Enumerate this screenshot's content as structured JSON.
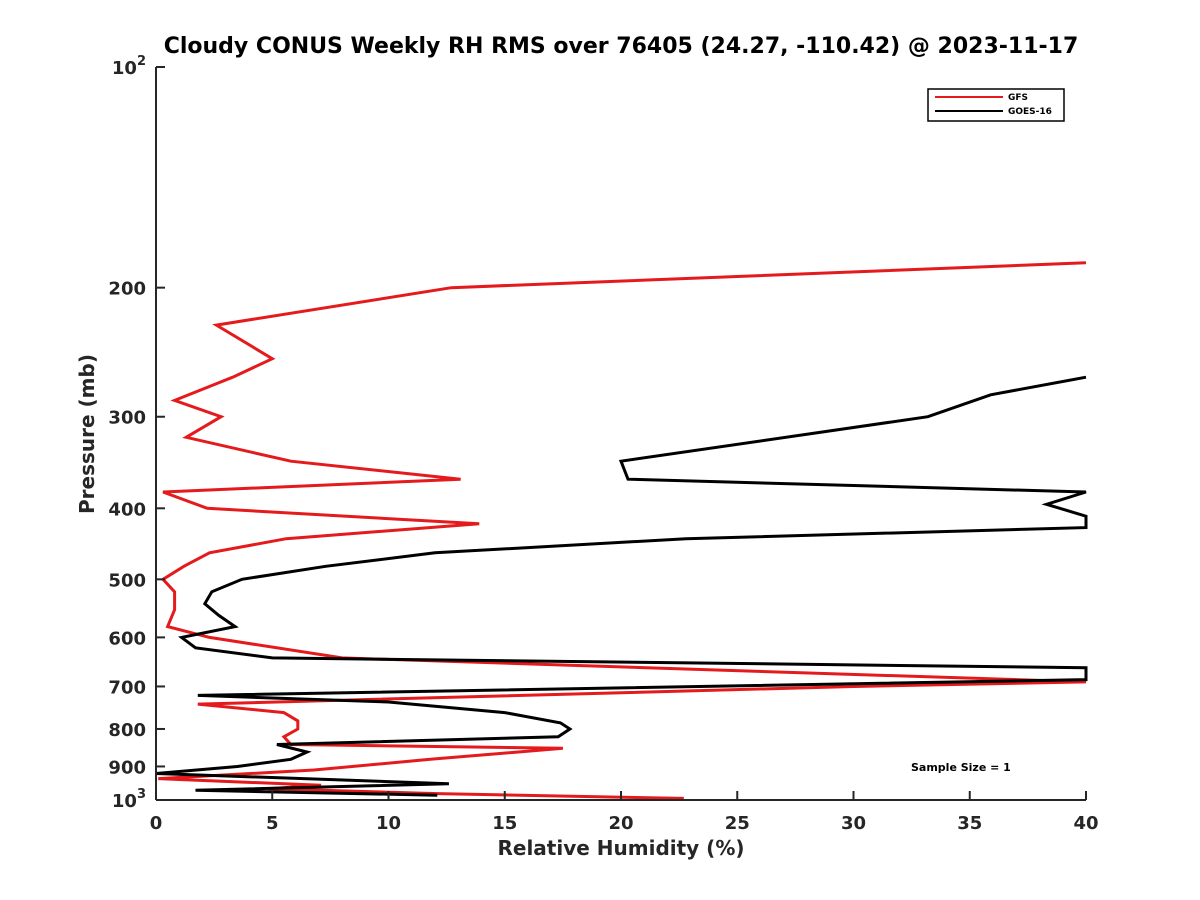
{
  "chart_data": {
    "type": "line",
    "title": "Cloudy CONUS Weekly RH RMS over 76405 (24.27, -110.42) @ 2023-11-17",
    "xlabel": "Relative Humidity (%)",
    "ylabel": "Pressure (mb)",
    "xlim": [
      0,
      40
    ],
    "ylim": [
      100,
      1000
    ],
    "y_scale": "log",
    "y_reversed": true,
    "x_ticks": [
      0,
      5,
      10,
      15,
      20,
      25,
      30,
      35,
      40
    ],
    "y_ticks": [
      {
        "value": 200,
        "label": "200"
      },
      {
        "value": 300,
        "label": "300"
      },
      {
        "value": 400,
        "label": "400"
      },
      {
        "value": 500,
        "label": "500"
      },
      {
        "value": 600,
        "label": "600"
      },
      {
        "value": 700,
        "label": "700"
      },
      {
        "value": 800,
        "label": "800"
      },
      {
        "value": 900,
        "label": "900"
      }
    ],
    "y_tick_top": {
      "value": 100,
      "base": "10",
      "exp": "2"
    },
    "y_tick_bottom": {
      "value": 1000,
      "base": "10",
      "exp": "3"
    },
    "grid": false,
    "legend_position": "top-right",
    "series": [
      {
        "name": "GFS",
        "color": "#e41a1c",
        "points": [
          [
            40,
            185
          ],
          [
            12.7,
            200
          ],
          [
            2.6,
            225
          ],
          [
            5,
            250
          ],
          [
            3.3,
            265
          ],
          [
            0.8,
            285
          ],
          [
            2.8,
            300
          ],
          [
            1.3,
            320
          ],
          [
            5.8,
            345
          ],
          [
            13.1,
            365
          ],
          [
            0.3,
            380
          ],
          [
            2.2,
            400
          ],
          [
            13.9,
            420
          ],
          [
            5.6,
            440
          ],
          [
            2.3,
            460
          ],
          [
            1.2,
            480
          ],
          [
            0.3,
            500
          ],
          [
            0.8,
            520
          ],
          [
            0.8,
            550
          ],
          [
            0.5,
            580
          ],
          [
            2.3,
            600
          ],
          [
            8,
            640
          ],
          [
            40,
            690
          ],
          [
            30,
            700
          ],
          [
            1.8,
            740
          ],
          [
            5.5,
            760
          ],
          [
            6.1,
            780
          ],
          [
            6.1,
            800
          ],
          [
            5.5,
            820
          ],
          [
            5.8,
            840
          ],
          [
            17.5,
            850
          ],
          [
            11.8,
            880
          ],
          [
            6.8,
            910
          ],
          [
            0.1,
            935
          ],
          [
            7.1,
            955
          ],
          [
            4.8,
            965
          ],
          [
            12.1,
            980
          ],
          [
            22.7,
            995
          ]
        ]
      },
      {
        "name": "GOES-16",
        "color": "#000000",
        "points": [
          [
            40,
            265
          ],
          [
            35.9,
            280
          ],
          [
            33.2,
            300
          ],
          [
            20,
            345
          ],
          [
            20.3,
            365
          ],
          [
            40,
            380
          ],
          [
            38.3,
            395
          ],
          [
            40,
            410
          ],
          [
            40,
            425
          ],
          [
            22.8,
            440
          ],
          [
            12,
            460
          ],
          [
            7.3,
            480
          ],
          [
            3.7,
            500
          ],
          [
            2.4,
            520
          ],
          [
            2.1,
            540
          ],
          [
            2.7,
            560
          ],
          [
            3.4,
            580
          ],
          [
            1.1,
            600
          ],
          [
            1.7,
            620
          ],
          [
            5,
            640
          ],
          [
            40,
            660
          ],
          [
            40,
            685
          ],
          [
            1.8,
            720
          ],
          [
            10,
            735
          ],
          [
            15,
            760
          ],
          [
            17.4,
            785
          ],
          [
            17.8,
            800
          ],
          [
            17.3,
            820
          ],
          [
            5.2,
            840
          ],
          [
            6.5,
            860
          ],
          [
            5.8,
            880
          ],
          [
            3.5,
            900
          ],
          [
            0,
            920
          ],
          [
            12.6,
            950
          ],
          [
            1.7,
            970
          ],
          [
            12.1,
            985
          ]
        ]
      }
    ],
    "annotation": "Sample Size = 1"
  }
}
